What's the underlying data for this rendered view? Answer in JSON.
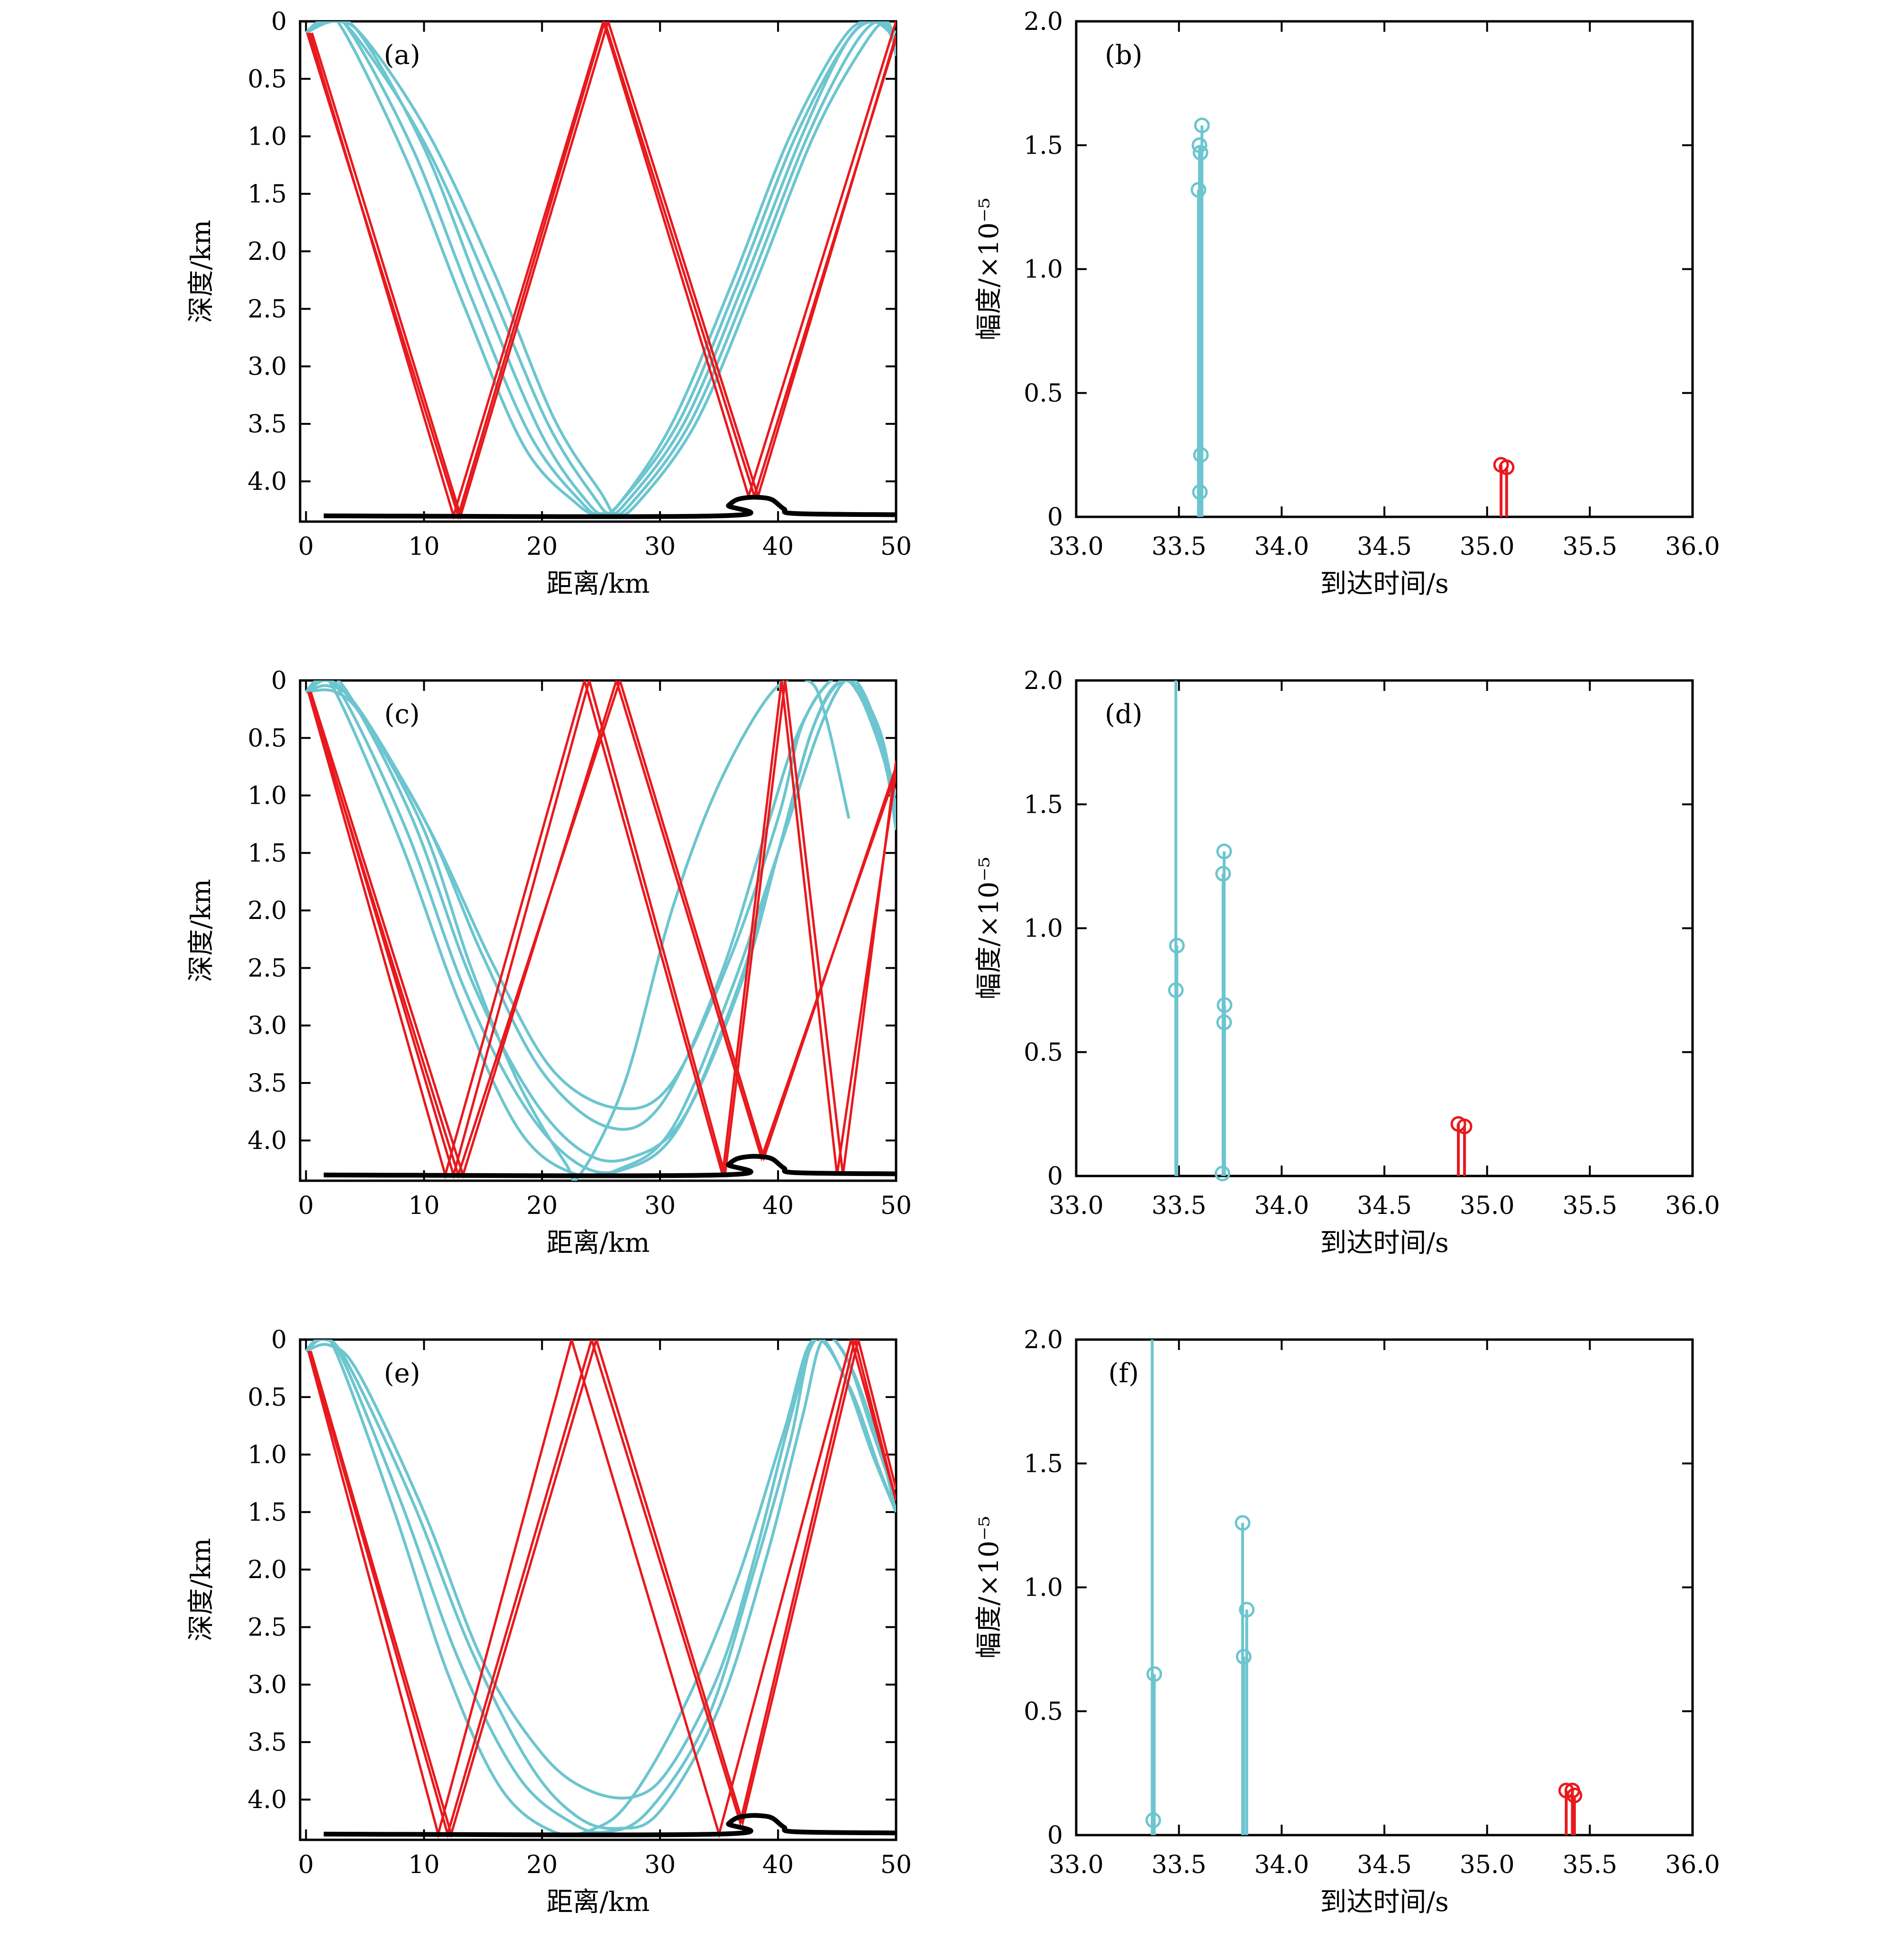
{
  "colors": {
    "cyan": "#6cc5cf",
    "red": "#e8191d",
    "axis": "#000000",
    "seabed": "#000000"
  },
  "chart_data": [
    {
      "type": "line",
      "panel": "(a)",
      "xlabel": "距离/km",
      "ylabel": "深度/km",
      "xlim": [
        -0.5,
        50
      ],
      "ylim": [
        4.35,
        0
      ],
      "xticks": [
        "0",
        "10",
        "20",
        "30",
        "40",
        "50"
      ],
      "yticks": [
        "0",
        "0.5",
        "1.0",
        "1.5",
        "2.0",
        "2.5",
        "3.0",
        "3.5",
        "4.0"
      ],
      "ytick_values": [
        0,
        0.5,
        1.0,
        1.5,
        2.0,
        2.5,
        3.0,
        3.5,
        4.0
      ],
      "seabed": {
        "x": [
          1.5,
          35,
          35.8,
          36.5,
          37.5,
          38.5,
          39.5,
          40.5,
          41.5,
          50
        ],
        "y": [
          4.3,
          4.3,
          4.21,
          4.16,
          4.14,
          4.14,
          4.16,
          4.24,
          4.28,
          4.29
        ]
      },
      "red_rays": [
        {
          "x": [
            0.3,
            12.5,
            25.2,
            37.5,
            50
          ],
          "y": [
            0.1,
            4.3,
            0,
            4.13,
            0
          ]
        },
        {
          "x": [
            0.1,
            12.9,
            25.3,
            38.0,
            50
          ],
          "y": [
            0.1,
            4.3,
            0,
            4.13,
            0.15
          ]
        },
        {
          "x": [
            0.5,
            13.1,
            25.6,
            38.3,
            50
          ],
          "y": [
            0.1,
            4.3,
            0,
            4.13,
            0.12
          ]
        }
      ],
      "cyan_rays": [
        {
          "x": [
            0,
            2,
            4.5,
            10,
            15,
            20,
            24,
            25.5,
            27,
            32,
            37,
            42,
            46,
            48.5,
            50
          ],
          "y": [
            0.1,
            0,
            0.1,
            1.1,
            2.4,
            3.6,
            4.2,
            4.28,
            4.2,
            3.5,
            2.3,
            1.0,
            0.15,
            0,
            0.2
          ]
        },
        {
          "x": [
            0,
            1.5,
            3.5,
            9,
            14,
            19,
            23.5,
            25,
            26.5,
            31,
            36,
            41,
            45.5,
            48,
            50
          ],
          "y": [
            0.1,
            0,
            0.05,
            1.1,
            2.4,
            3.6,
            4.2,
            4.28,
            4.2,
            3.5,
            2.3,
            1.0,
            0.15,
            0,
            0.15
          ]
        },
        {
          "x": [
            0,
            1.2,
            3,
            8.5,
            13.5,
            18.5,
            23,
            24.8,
            26.5,
            31.5,
            36.5,
            41.5,
            46,
            48.5,
            50
          ],
          "y": [
            0.1,
            0,
            0.05,
            1.2,
            2.5,
            3.7,
            4.2,
            4.28,
            4.2,
            3.5,
            2.3,
            1.0,
            0.15,
            0,
            0.1
          ]
        },
        {
          "x": [
            0,
            1.8,
            4,
            10,
            15.5,
            20.5,
            24.5,
            25.8,
            27.5,
            32.5,
            37.5,
            42.5,
            46.5,
            48.8,
            50
          ],
          "y": [
            0.1,
            0,
            0.1,
            1.05,
            2.3,
            3.5,
            4.15,
            4.28,
            4.2,
            3.5,
            2.3,
            1.0,
            0.2,
            0,
            0.25
          ]
        },
        {
          "x": [
            0,
            2.5,
            5,
            10.5,
            16,
            21,
            25,
            26.2,
            28,
            33,
            38,
            43,
            47,
            49.2,
            50
          ],
          "y": [
            0.1,
            0,
            0.15,
            1.0,
            2.2,
            3.45,
            4.1,
            4.28,
            4.2,
            3.5,
            2.3,
            1.0,
            0.25,
            0,
            0.3
          ]
        }
      ]
    },
    {
      "type": "bar",
      "panel": "(b)",
      "xlabel": "到达时间/s",
      "ylabel": "幅度/×10⁻⁵",
      "xlim": [
        33.0,
        36.0
      ],
      "ylim": [
        0,
        2.0
      ],
      "xticks": [
        "33.0",
        "33.5",
        "34.0",
        "34.5",
        "35.0",
        "35.5",
        "36.0"
      ],
      "yticks": [
        "0",
        "0.5",
        "1.0",
        "1.5",
        "2.0"
      ],
      "cyan_stems": [
        {
          "x": 33.595,
          "y": 1.32
        },
        {
          "x": 33.6,
          "y": 1.5
        },
        {
          "x": 33.605,
          "y": 1.47
        },
        {
          "x": 33.612,
          "y": 1.58
        },
        {
          "x": 33.607,
          "y": 0.25
        },
        {
          "x": 33.602,
          "y": 0.1
        }
      ],
      "red_stems": [
        {
          "x": 35.068,
          "y": 0.21
        },
        {
          "x": 35.095,
          "y": 0.2
        }
      ]
    },
    {
      "type": "line",
      "panel": "(c)",
      "xlabel": "距离/km",
      "ylabel": "深度/km",
      "xlim": [
        -0.5,
        50
      ],
      "ylim": [
        4.35,
        0
      ],
      "xticks": [
        "0",
        "10",
        "20",
        "30",
        "40",
        "50"
      ],
      "yticks": [
        "0",
        "0.5",
        "1.0",
        "1.5",
        "2.0",
        "2.5",
        "3.0",
        "3.5",
        "4.0"
      ],
      "ytick_values": [
        0,
        0.5,
        1.0,
        1.5,
        2.0,
        2.5,
        3.0,
        3.5,
        4.0
      ],
      "seabed": {
        "x": [
          1.5,
          35,
          35.8,
          36.5,
          37.5,
          38.5,
          39.5,
          40.5,
          41.5,
          50
        ],
        "y": [
          4.3,
          4.3,
          4.21,
          4.16,
          4.14,
          4.14,
          4.16,
          4.24,
          4.28,
          4.29
        ]
      },
      "red_rays": [
        {
          "x": [
            0.2,
            11.8,
            23.6,
            35.3,
            40.3,
            45.0,
            50
          ],
          "y": [
            0.1,
            4.3,
            0,
            4.3,
            0,
            4.3,
            0.8
          ]
        },
        {
          "x": [
            0.3,
            12.5,
            24.0,
            35.5,
            40.6,
            45.5,
            50
          ],
          "y": [
            0.1,
            4.3,
            0,
            4.3,
            0,
            4.3,
            0.7
          ]
        },
        {
          "x": [
            0.4,
            13.3,
            26.3,
            38.6,
            50
          ],
          "y": [
            0.1,
            4.3,
            0,
            4.15,
            0.8
          ]
        },
        {
          "x": [
            0.2,
            12.9,
            26.6,
            38.8,
            50
          ],
          "y": [
            0.1,
            4.3,
            0,
            4.15,
            0.75
          ]
        }
      ],
      "cyan_rays": [
        {
          "x": [
            0,
            1.5,
            3.5,
            9,
            14,
            19,
            23.5,
            27.5,
            32,
            37,
            40,
            43,
            45.5,
            48,
            50
          ],
          "y": [
            0.1,
            0,
            0.1,
            1.2,
            2.6,
            3.6,
            4.1,
            4.15,
            3.8,
            2.6,
            1.5,
            0.4,
            0,
            0.3,
            1.0
          ]
        },
        {
          "x": [
            0,
            1.2,
            3.2,
            8.5,
            13.5,
            18.5,
            23,
            27,
            31.5,
            36.5,
            40,
            43,
            45.8,
            48.5,
            50
          ],
          "y": [
            0.1,
            0,
            0.15,
            1.3,
            2.7,
            3.7,
            4.2,
            4.25,
            3.9,
            2.7,
            1.5,
            0.4,
            0,
            0.4,
            1.1
          ]
        },
        {
          "x": [
            0,
            1.8,
            4,
            10,
            15,
            20,
            25.5,
            30,
            35,
            39,
            41.5,
            44,
            46,
            48.5,
            50
          ],
          "y": [
            0.1,
            0,
            0.2,
            1.2,
            2.4,
            3.4,
            3.88,
            3.7,
            2.6,
            1.3,
            0.5,
            0.05,
            0,
            0.5,
            1.2
          ]
        },
        {
          "x": [
            0,
            2,
            4.5,
            10.5,
            16,
            21,
            26.5,
            31,
            36,
            40,
            42,
            44.5,
            46.5,
            49,
            50
          ],
          "y": [
            0.1,
            0.05,
            0.25,
            1.3,
            2.5,
            3.4,
            3.72,
            3.5,
            2.4,
            1.2,
            0.4,
            0,
            0.05,
            0.7,
            1.3
          ]
        },
        {
          "x": [
            0,
            1,
            2.5,
            8,
            13,
            18,
            22.5,
            26.5,
            31,
            36,
            40,
            44,
            46.5,
            49,
            50
          ],
          "y": [
            0.1,
            0,
            0.1,
            1.4,
            2.8,
            3.9,
            4.28,
            4.25,
            3.9,
            2.7,
            1.5,
            0.3,
            0,
            0.6,
            1.2
          ]
        },
        {
          "x": [
            0,
            2.5,
            5,
            10,
            14,
            18,
            22,
            23.2,
            27,
            31,
            35,
            39.5,
            42.5,
            44,
            46
          ],
          "y": [
            0.1,
            0.1,
            0.35,
            1.3,
            2.5,
            3.5,
            4.2,
            4.3,
            3.5,
            2.0,
            0.9,
            0.1,
            0,
            0.3,
            1.2
          ]
        }
      ]
    },
    {
      "type": "bar",
      "panel": "(d)",
      "xlabel": "到达时间/s",
      "ylabel": "幅度/×10⁻⁵",
      "xlim": [
        33.0,
        36.0
      ],
      "ylim": [
        0,
        2.0
      ],
      "xticks": [
        "33.0",
        "33.5",
        "34.0",
        "34.5",
        "35.0",
        "35.5",
        "36.0"
      ],
      "yticks": [
        "0",
        "0.5",
        "1.0",
        "1.5",
        "2.0"
      ],
      "cyan_stems": [
        {
          "x": 33.485,
          "y": 2.0
        },
        {
          "x": 33.49,
          "y": 0.93
        },
        {
          "x": 33.485,
          "y": 0.75
        },
        {
          "x": 33.715,
          "y": 1.22
        },
        {
          "x": 33.72,
          "y": 1.31
        },
        {
          "x": 33.722,
          "y": 0.69
        },
        {
          "x": 33.72,
          "y": 0.62
        },
        {
          "x": 33.712,
          "y": 0.01
        }
      ],
      "red_stems": [
        {
          "x": 34.86,
          "y": 0.21
        },
        {
          "x": 34.89,
          "y": 0.2
        }
      ]
    },
    {
      "type": "line",
      "panel": "(e)",
      "xlabel": "距离/km",
      "ylabel": "深度/km",
      "xlim": [
        -0.5,
        50
      ],
      "ylim": [
        4.35,
        0
      ],
      "xticks": [
        "0",
        "10",
        "20",
        "30",
        "40",
        "50"
      ],
      "yticks": [
        "0",
        "0.5",
        "1.0",
        "1.5",
        "2.0",
        "2.5",
        "3.0",
        "3.5",
        "4.0"
      ],
      "ytick_values": [
        0,
        0.5,
        1.0,
        1.5,
        2.0,
        2.5,
        3.0,
        3.5,
        4.0
      ],
      "seabed": {
        "x": [
          1.5,
          35,
          35.8,
          36.5,
          37.5,
          38.5,
          39.5,
          40.5,
          41.5,
          50
        ],
        "y": [
          4.3,
          4.3,
          4.21,
          4.16,
          4.14,
          4.14,
          4.16,
          4.24,
          4.28,
          4.29
        ]
      },
      "red_rays": [
        {
          "x": [
            0.2,
            11.2,
            22.5,
            35.0,
            46.2,
            50
          ],
          "y": [
            0.1,
            4.3,
            0,
            4.3,
            0,
            1.4
          ]
        },
        {
          "x": [
            0.3,
            12.0,
            24.2,
            36.8,
            46.5,
            50
          ],
          "y": [
            0.1,
            4.3,
            0,
            4.2,
            0,
            1.4
          ]
        },
        {
          "x": [
            0.4,
            12.3,
            24.6,
            37.0,
            46.8,
            50
          ],
          "y": [
            0.1,
            4.3,
            0,
            4.2,
            0,
            1.3
          ]
        }
      ],
      "cyan_rays": [
        {
          "x": [
            0,
            1.2,
            3,
            8,
            13,
            18,
            22.5,
            25.5,
            29,
            34,
            38,
            41,
            43,
            45.5,
            48,
            50
          ],
          "y": [
            0.1,
            0,
            0.15,
            1.4,
            2.8,
            3.8,
            4.2,
            4.28,
            4.1,
            3.3,
            2.0,
            0.9,
            0,
            0.1,
            0.8,
            1.4
          ]
        },
        {
          "x": [
            0,
            1.5,
            3.5,
            9,
            14,
            19,
            23,
            26.5,
            30,
            35,
            39,
            42,
            43.8,
            46,
            48.5,
            50
          ],
          "y": [
            0.1,
            0,
            0.2,
            1.4,
            2.7,
            3.7,
            4.15,
            4.25,
            4.1,
            3.2,
            1.9,
            0.7,
            0,
            0.2,
            0.9,
            1.5
          ]
        },
        {
          "x": [
            0,
            2,
            4.5,
            10,
            15,
            20,
            24,
            28,
            31,
            35,
            38,
            41,
            43.2,
            45.5,
            48,
            50
          ],
          "y": [
            0.1,
            0.05,
            0.3,
            1.5,
            2.8,
            3.6,
            3.92,
            3.97,
            3.7,
            2.9,
            1.9,
            0.7,
            0,
            0.3,
            1.0,
            1.5
          ]
        },
        {
          "x": [
            0,
            1,
            2.5,
            7.5,
            12,
            16.5,
            21,
            24.5,
            27.5,
            32,
            36.5,
            40.5,
            43,
            46,
            48.5,
            50
          ],
          "y": [
            0.1,
            0,
            0.1,
            1.5,
            2.9,
            3.9,
            4.28,
            4.25,
            4.0,
            3.2,
            2.1,
            0.8,
            0,
            0.4,
            1.1,
            1.5
          ]
        }
      ]
    },
    {
      "type": "bar",
      "panel": "(f)",
      "xlabel": "到达时间/s",
      "ylabel": "幅度/×10⁻⁵",
      "xlim": [
        33.0,
        36.0
      ],
      "ylim": [
        0,
        2.0
      ],
      "xticks": [
        "33.0",
        "33.5",
        "34.0",
        "34.5",
        "35.0",
        "35.5",
        "36.0"
      ],
      "yticks": [
        "0",
        "0.5",
        "1.0",
        "1.5",
        "2.0"
      ],
      "cyan_stems": [
        {
          "x": 33.37,
          "y": 2.0
        },
        {
          "x": 33.38,
          "y": 0.65
        },
        {
          "x": 33.375,
          "y": 0.06
        },
        {
          "x": 33.81,
          "y": 1.26
        },
        {
          "x": 33.83,
          "y": 0.91
        },
        {
          "x": 33.815,
          "y": 0.72
        }
      ],
      "red_stems": [
        {
          "x": 35.385,
          "y": 0.18
        },
        {
          "x": 35.415,
          "y": 0.18
        },
        {
          "x": 35.425,
          "y": 0.16
        }
      ]
    }
  ]
}
